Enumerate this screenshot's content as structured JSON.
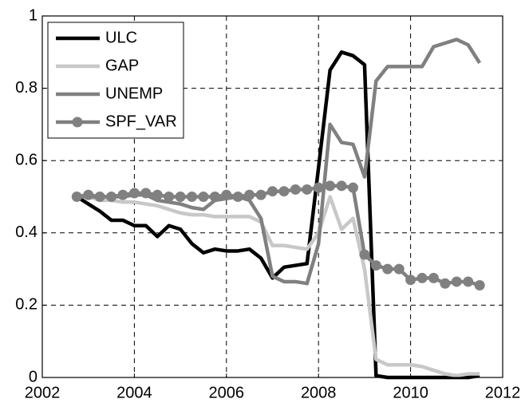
{
  "chart_data": {
    "type": "line",
    "x": [
      2002.75,
      2003,
      2003.25,
      2003.5,
      2003.75,
      2004,
      2004.25,
      2004.5,
      2004.75,
      2005,
      2005.25,
      2005.5,
      2005.75,
      2006,
      2006.25,
      2006.5,
      2006.75,
      2007,
      2007.25,
      2007.5,
      2007.75,
      2008,
      2008.25,
      2008.5,
      2008.75,
      2009,
      2009.25,
      2009.5,
      2009.75,
      2010,
      2010.25,
      2010.5,
      2010.75,
      2011,
      2011.25,
      2011.5
    ],
    "series": [
      {
        "name": "ULC",
        "color": "#000000",
        "marker": false,
        "values": [
          0.5,
          0.48,
          0.46,
          0.435,
          0.435,
          0.42,
          0.42,
          0.39,
          0.42,
          0.41,
          0.37,
          0.345,
          0.355,
          0.35,
          0.35,
          0.355,
          0.33,
          0.275,
          0.305,
          0.31,
          0.315,
          0.58,
          0.85,
          0.9,
          0.89,
          0.865,
          0.005,
          0,
          0,
          0,
          0,
          0,
          0,
          0,
          0,
          0.005
        ]
      },
      {
        "name": "GAP",
        "color": "#c8c8c8",
        "marker": false,
        "values": [
          0.5,
          0.5,
          0.49,
          0.49,
          0.485,
          0.485,
          0.48,
          0.475,
          0.465,
          0.455,
          0.45,
          0.45,
          0.445,
          0.445,
          0.445,
          0.445,
          0.43,
          0.365,
          0.365,
          0.36,
          0.355,
          0.4,
          0.5,
          0.41,
          0.44,
          0.3,
          0.05,
          0.035,
          0.035,
          0.035,
          0.03,
          0.02,
          0.01,
          0.005,
          0.01,
          0.01
        ]
      },
      {
        "name": "UNEMP",
        "color": "#808080",
        "marker": false,
        "values": [
          0.5,
          0.5,
          0.5,
          0.5,
          0.5,
          0.505,
          0.505,
          0.49,
          0.485,
          0.48,
          0.47,
          0.465,
          0.49,
          0.495,
          0.5,
          0.49,
          0.44,
          0.28,
          0.265,
          0.265,
          0.26,
          0.37,
          0.7,
          0.65,
          0.645,
          0.555,
          0.82,
          0.86,
          0.86,
          0.86,
          0.86,
          0.915,
          0.925,
          0.935,
          0.92,
          0.87
        ]
      },
      {
        "name": "SPF_VAR",
        "color": "#808080",
        "marker": true,
        "values": [
          0.5,
          0.505,
          0.5,
          0.5,
          0.505,
          0.51,
          0.51,
          0.505,
          0.5,
          0.5,
          0.5,
          0.5,
          0.5,
          0.505,
          0.5,
          0.505,
          0.505,
          0.515,
          0.515,
          0.52,
          0.52,
          0.525,
          0.53,
          0.53,
          0.525,
          0.34,
          0.31,
          0.3,
          0.3,
          0.27,
          0.275,
          0.275,
          0.26,
          0.265,
          0.265,
          0.255
        ]
      }
    ],
    "xlim": [
      2002,
      2012
    ],
    "xticks": [
      2002,
      2004,
      2006,
      2008,
      2010,
      2012
    ],
    "ylim": [
      0,
      1
    ],
    "yticks": [
      0,
      0.2,
      0.4,
      0.6,
      0.8,
      1
    ],
    "grid": true,
    "legend": "upper left"
  }
}
